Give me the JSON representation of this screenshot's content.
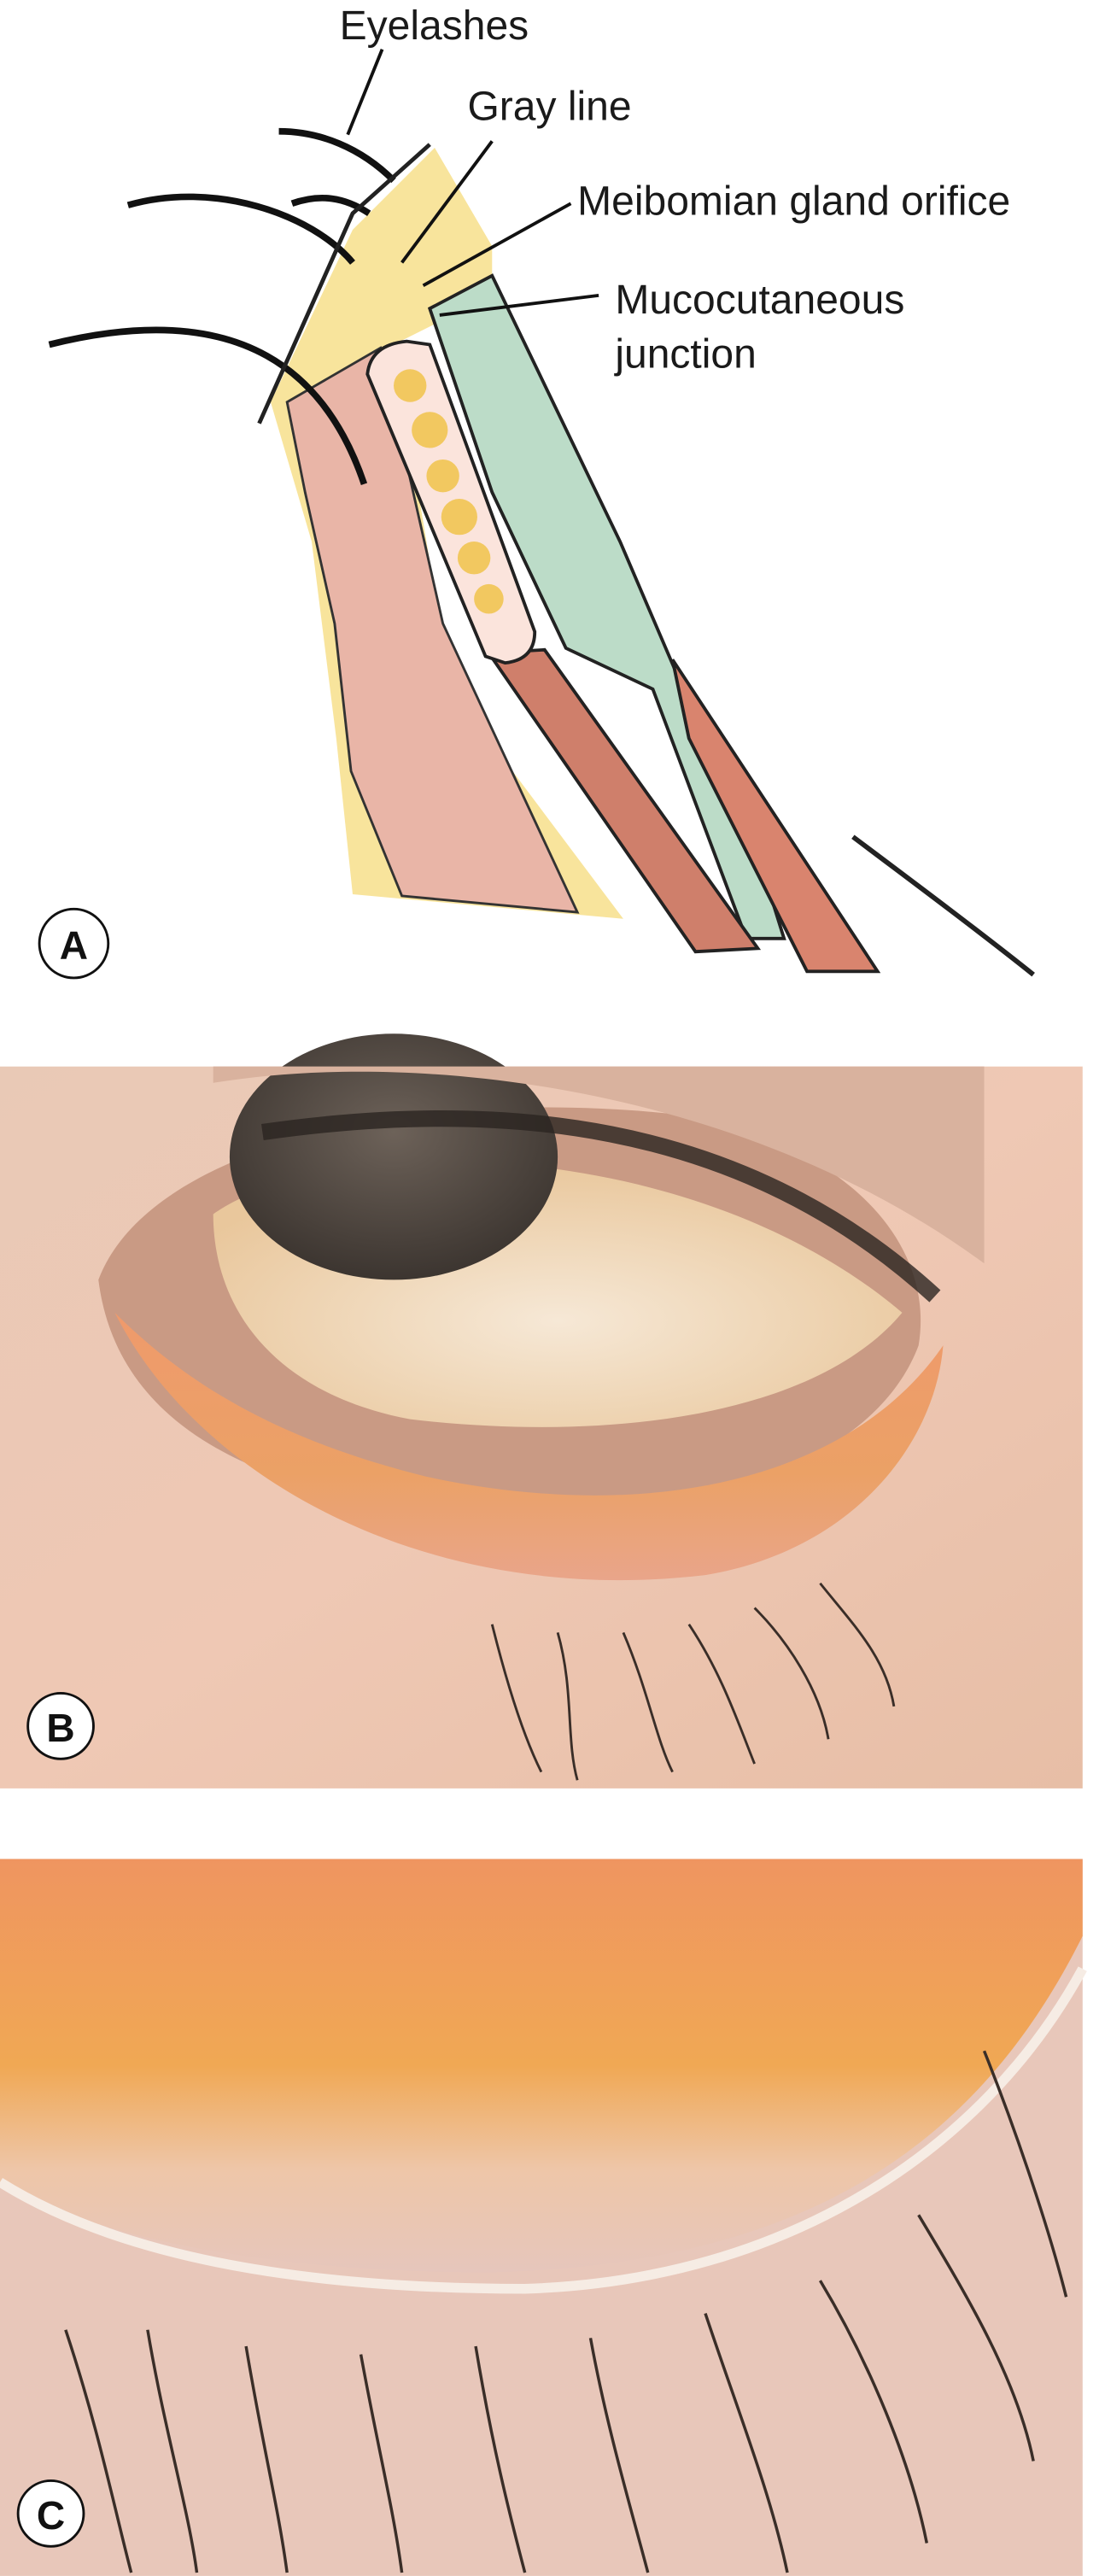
{
  "panel_a": {
    "panel_label": "A",
    "labels": {
      "eyelashes": "Eyelashes",
      "gray_line": "Gray line",
      "meibomian": "Meibomian gland orifice",
      "mucocutaneous": [
        "Mucocutaneous",
        "junction"
      ]
    }
  },
  "panel_b": {
    "panel_label": "B"
  },
  "panel_c": {
    "panel_label": "C"
  }
}
